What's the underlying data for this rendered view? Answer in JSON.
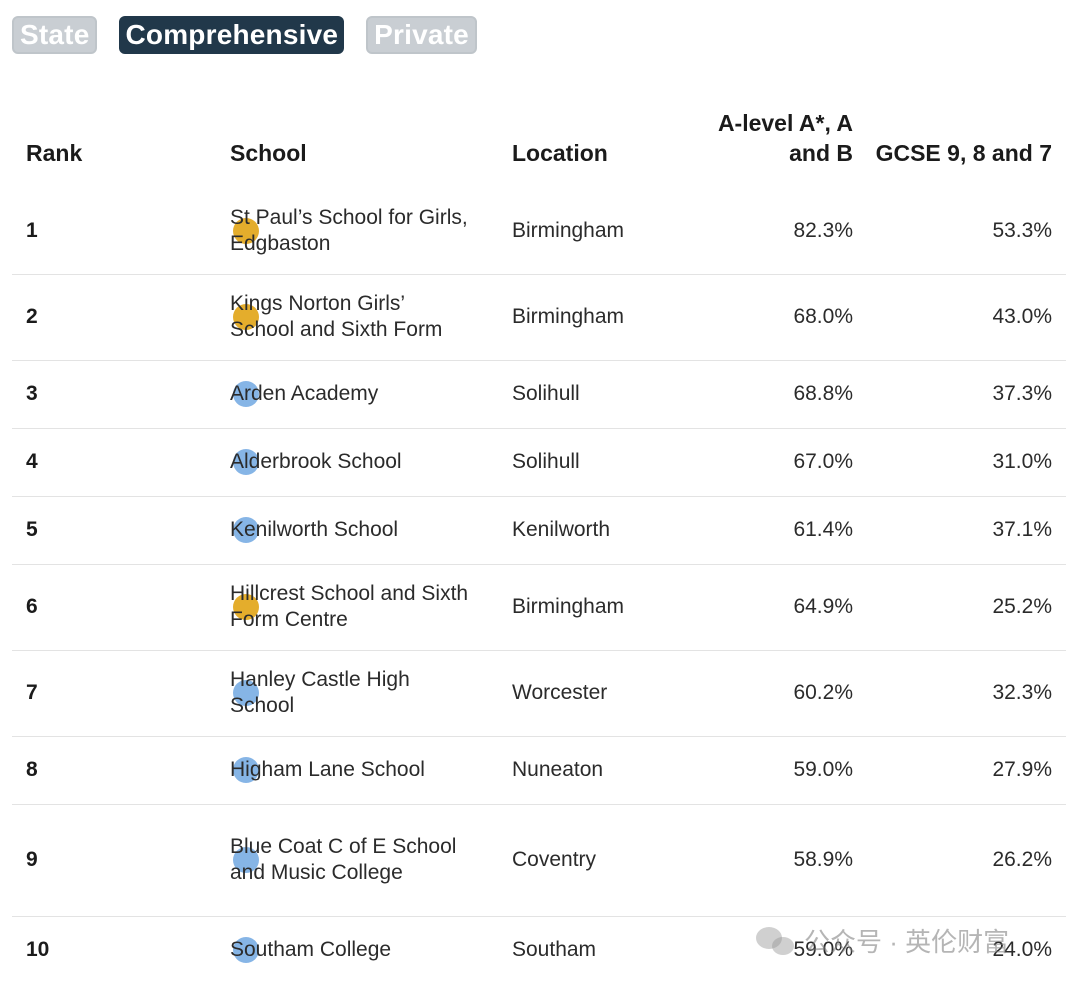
{
  "filters": {
    "state": "State",
    "comprehensive": "Comprehensive",
    "private": "Private"
  },
  "colors": {
    "state": "#e4ad2c",
    "comprehensive": "#86b5e6",
    "chip_active": "#21384a",
    "chip_inactive": "#c9ced3"
  },
  "table": {
    "headers": {
      "rank": "Rank",
      "school": "School",
      "location": "Location",
      "alevel": "A-level A*, A and B",
      "gcse": "GCSE 9, 8 and 7"
    },
    "rows": [
      {
        "rank": "1",
        "type": "state",
        "school": "St Paul’s School for Girls, Edgbaston",
        "location": "Birmingham",
        "alevel": "82.3%",
        "gcse": "53.3%"
      },
      {
        "rank": "2",
        "type": "state",
        "school": "Kings Norton Girls’ School and Sixth Form",
        "location": "Birmingham",
        "alevel": "68.0%",
        "gcse": "43.0%"
      },
      {
        "rank": "3",
        "type": "comprehensive",
        "school": "Arden Academy",
        "location": "Solihull",
        "alevel": "68.8%",
        "gcse": "37.3%"
      },
      {
        "rank": "4",
        "type": "comprehensive",
        "school": "Alderbrook School",
        "location": "Solihull",
        "alevel": "67.0%",
        "gcse": "31.0%"
      },
      {
        "rank": "5",
        "type": "comprehensive",
        "school": "Kenilworth School",
        "location": "Kenilworth",
        "alevel": "61.4%",
        "gcse": "37.1%"
      },
      {
        "rank": "6",
        "type": "state",
        "school": "Hillcrest School and Sixth Form Centre",
        "location": "Birmingham",
        "alevel": "64.9%",
        "gcse": "25.2%"
      },
      {
        "rank": "7",
        "type": "comprehensive",
        "school": "Hanley Castle High School",
        "location": "Worcester",
        "alevel": "60.2%",
        "gcse": "32.3%"
      },
      {
        "rank": "8",
        "type": "comprehensive",
        "school": "Higham Lane School",
        "location": "Nuneaton",
        "alevel": "59.0%",
        "gcse": "27.9%"
      },
      {
        "rank": "9",
        "type": "comprehensive",
        "school": "Blue Coat C of E School and Music College",
        "location": "Coventry",
        "alevel": "58.9%",
        "gcse": "26.2%"
      },
      {
        "rank": "10",
        "type": "comprehensive",
        "school": "Southam College",
        "location": "Southam",
        "alevel": "59.0%",
        "gcse": "24.0%"
      }
    ]
  },
  "watermark": {
    "text": "公众号 · 英伦财富"
  }
}
